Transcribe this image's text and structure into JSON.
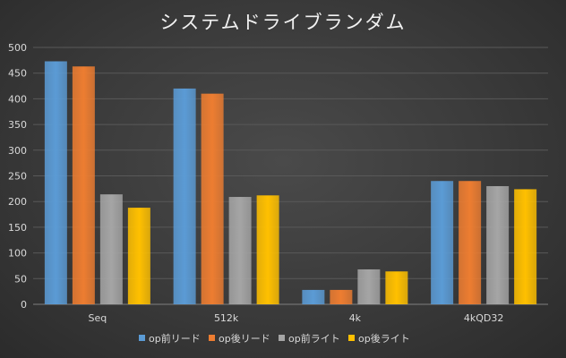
{
  "chart_data": {
    "type": "bar",
    "title": "システムドライブランダム",
    "categories": [
      "Seq",
      "512k",
      "4k",
      "4kQD32"
    ],
    "series": [
      {
        "name": "op前リード",
        "color": "#5b9bd5",
        "values": [
          473,
          420,
          28,
          240
        ]
      },
      {
        "name": "op後リード",
        "color": "#ed7d31",
        "values": [
          463,
          410,
          28,
          240
        ]
      },
      {
        "name": "op前ライト",
        "color": "#a5a5a5",
        "values": [
          214,
          209,
          68,
          230
        ]
      },
      {
        "name": "op後ライト",
        "color": "#ffc000",
        "values": [
          188,
          212,
          64,
          224
        ]
      }
    ],
    "ylim": [
      0,
      500
    ],
    "yticks": [
      0,
      50,
      100,
      150,
      200,
      250,
      300,
      350,
      400,
      450,
      500
    ],
    "grid": true,
    "legend": "bottom"
  }
}
